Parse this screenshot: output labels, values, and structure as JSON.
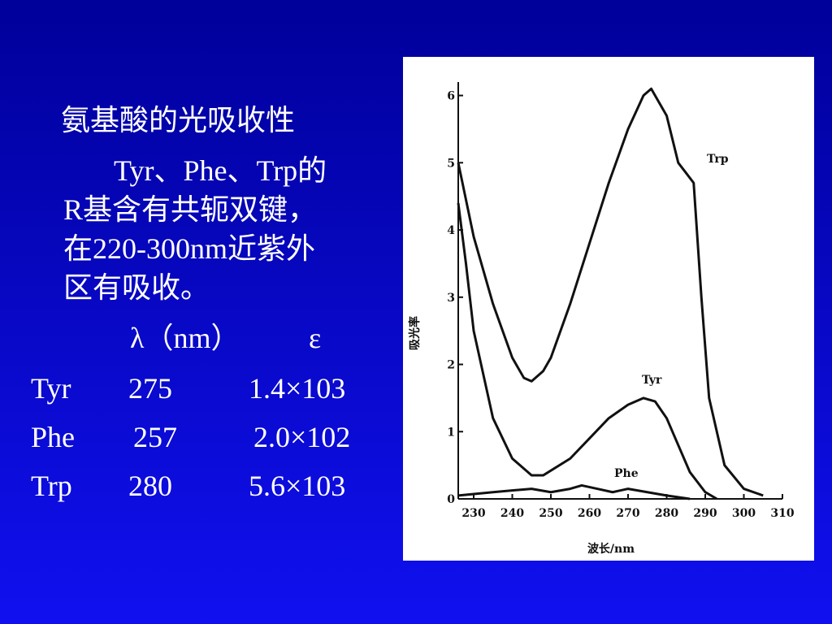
{
  "slide": {
    "title": "氨基酸的光吸收性",
    "paragraph": [
      "Tyr、Phe、Trp的",
      "R基含有共轭双键，",
      "在220-300nm近紫外",
      "区有吸收。"
    ],
    "table": {
      "header": [
        "λ（nm）",
        "ε"
      ],
      "rows": [
        [
          "Tyr",
          "275",
          "1.4×103"
        ],
        [
          "Phe",
          "257",
          "2.0×102"
        ],
        [
          "Trp",
          "280",
          "5.6×103"
        ]
      ]
    }
  },
  "chart_data": {
    "type": "line",
    "x_label": "波长/nm",
    "y_label": "吸光率",
    "xlim": [
      226,
      310
    ],
    "xticks": [
      230,
      240,
      250,
      260,
      270,
      280,
      290,
      300,
      310
    ],
    "ylim": [
      0,
      6.2
    ],
    "yticks": [
      0,
      1,
      2,
      3,
      4,
      5,
      6
    ],
    "color": "#111111",
    "series": [
      {
        "name": "Trp",
        "x": [
          226,
          230,
          235,
          240,
          243,
          245,
          248,
          250,
          255,
          260,
          265,
          270,
          274,
          276,
          280,
          283,
          285,
          287,
          289,
          291,
          295,
          300,
          305
        ],
        "values": [
          5.0,
          3.9,
          2.9,
          2.1,
          1.8,
          1.75,
          1.9,
          2.1,
          2.9,
          3.8,
          4.7,
          5.5,
          6.0,
          6.1,
          5.7,
          5.0,
          4.85,
          4.7,
          3.0,
          1.5,
          0.5,
          0.15,
          0.05
        ]
      },
      {
        "name": "Tyr",
        "x": [
          226,
          228,
          230,
          235,
          240,
          245,
          248,
          255,
          260,
          265,
          270,
          274,
          277,
          280,
          283,
          286,
          290,
          293
        ],
        "values": [
          4.4,
          3.5,
          2.5,
          1.2,
          0.6,
          0.35,
          0.35,
          0.6,
          0.9,
          1.2,
          1.4,
          1.5,
          1.45,
          1.2,
          0.8,
          0.4,
          0.1,
          0
        ]
      },
      {
        "name": "Phe",
        "x": [
          226,
          235,
          245,
          250,
          255,
          258,
          262,
          266,
          270,
          275,
          280,
          286
        ],
        "values": [
          0.05,
          0.1,
          0.15,
          0.1,
          0.15,
          0.2,
          0.15,
          0.1,
          0.15,
          0.1,
          0.05,
          0
        ]
      }
    ]
  }
}
